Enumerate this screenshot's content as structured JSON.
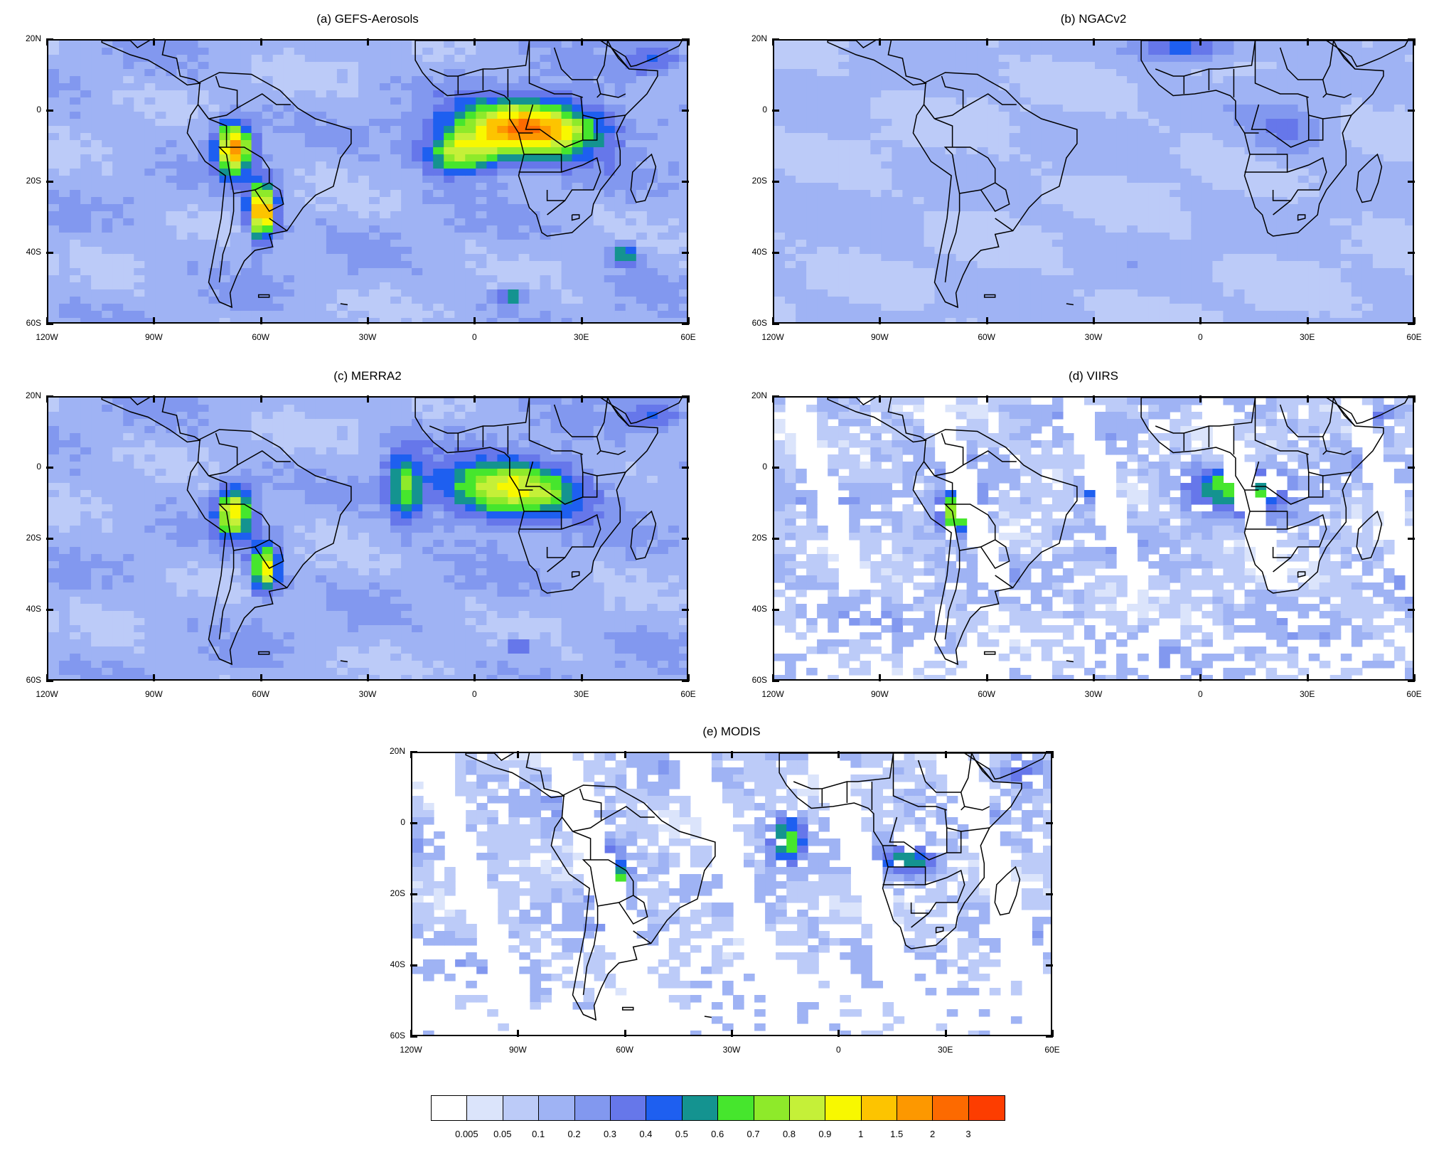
{
  "panels": [
    {
      "id": "a",
      "title": "(a) GEFS-Aerosols",
      "style": "model_strong"
    },
    {
      "id": "b",
      "title": "(b) NGACv2",
      "style": "model_weak"
    },
    {
      "id": "c",
      "title": "(c) MERRA2",
      "style": "model_medium"
    },
    {
      "id": "d",
      "title": "(d) VIIRS",
      "style": "satellite_viirs"
    },
    {
      "id": "e",
      "title": "(e) MODIS",
      "style": "satellite_modis"
    }
  ],
  "lat_labels": [
    "20N",
    "0",
    "20S",
    "40S",
    "60S"
  ],
  "lon_labels": [
    "120W",
    "90W",
    "60W",
    "30W",
    "0",
    "30E",
    "60E"
  ],
  "colorbar": {
    "labels": [
      "0.005",
      "0.05",
      "0.1",
      "0.2",
      "0.3",
      "0.4",
      "0.5",
      "0.6",
      "0.7",
      "0.8",
      "0.9",
      "1",
      "1.5",
      "2",
      "3"
    ],
    "colors": [
      "#ffffff",
      "#dbe4fb",
      "#bccbf8",
      "#9fb3f4",
      "#8298ef",
      "#6677ea",
      "#1e5ff0",
      "#149390",
      "#46e62d",
      "#8eea2a",
      "#c5f038",
      "#f8f800",
      "#fdc400",
      "#fd9800",
      "#fd6a00",
      "#fd3d00"
    ]
  }
}
